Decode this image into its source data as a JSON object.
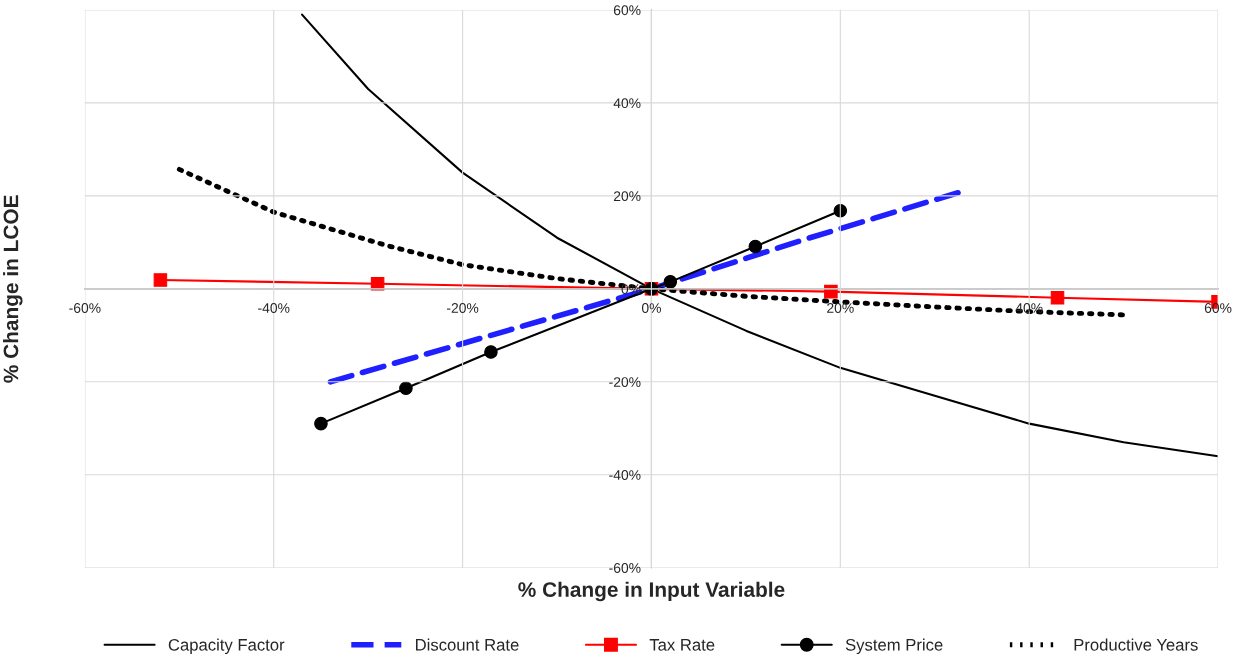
{
  "chart_data": {
    "type": "line",
    "xlabel": "% Change in Input Variable",
    "ylabel": "% Change in LCOE",
    "xlim": [
      -60,
      60
    ],
    "ylim": [
      -60,
      60
    ],
    "xticks": [
      {
        "value": -60,
        "label": "-60%"
      },
      {
        "value": -40,
        "label": "-40%"
      },
      {
        "value": -20,
        "label": "-20%"
      },
      {
        "value": 0,
        "label": "0%"
      },
      {
        "value": 20,
        "label": "20%"
      },
      {
        "value": 40,
        "label": "40%"
      },
      {
        "value": 60,
        "label": "60%"
      }
    ],
    "yticks": [
      {
        "value": -60,
        "label": "-60%"
      },
      {
        "value": -40,
        "label": "-40%"
      },
      {
        "value": -20,
        "label": "-20%"
      },
      {
        "value": 0,
        "label": "0%"
      },
      {
        "value": 20,
        "label": "20%"
      },
      {
        "value": 40,
        "label": "40%"
      },
      {
        "value": 60,
        "label": "60%"
      }
    ],
    "grid": true,
    "legend": "bottom",
    "series": [
      {
        "name": "Capacity Factor",
        "color": "#000000",
        "line_style": "solid",
        "marker": "none",
        "x": [
          -37,
          -30,
          -20,
          -10,
          0,
          10,
          20,
          30,
          40,
          50,
          60
        ],
        "values": [
          59,
          43,
          25,
          11,
          0,
          -9,
          -17,
          -23,
          -29,
          -33,
          -36
        ]
      },
      {
        "name": "Discount Rate",
        "color": "#1f1fff",
        "line_style": "dashed",
        "marker": "none",
        "x": [
          -34,
          -17,
          0,
          16,
          33
        ],
        "values": [
          -20,
          -10,
          0,
          10.5,
          21
        ]
      },
      {
        "name": "Tax Rate",
        "color": "#ff0000",
        "line_style": "solid",
        "marker": "square",
        "x": [
          -52,
          -29,
          0,
          19,
          43,
          60
        ],
        "values": [
          1.9,
          1.1,
          0,
          -0.6,
          -1.9,
          -2.8
        ]
      },
      {
        "name": "System Price",
        "color": "#000000",
        "line_style": "solid",
        "marker": "circle",
        "x": [
          -35,
          -26,
          -17,
          0,
          2,
          11,
          20
        ],
        "values": [
          -29,
          -21.4,
          -13.6,
          0,
          1.5,
          9.1,
          16.8
        ]
      },
      {
        "name": "Productive Years",
        "color": "#000000",
        "line_style": "dotted",
        "marker": "none",
        "x": [
          -50,
          -40,
          -28,
          -20,
          -10,
          0,
          10,
          20,
          30,
          40,
          50
        ],
        "values": [
          25.7,
          16.5,
          9.3,
          5.2,
          2.2,
          0,
          -1.6,
          -2.8,
          -3.9,
          -4.9,
          -5.6
        ]
      }
    ]
  }
}
